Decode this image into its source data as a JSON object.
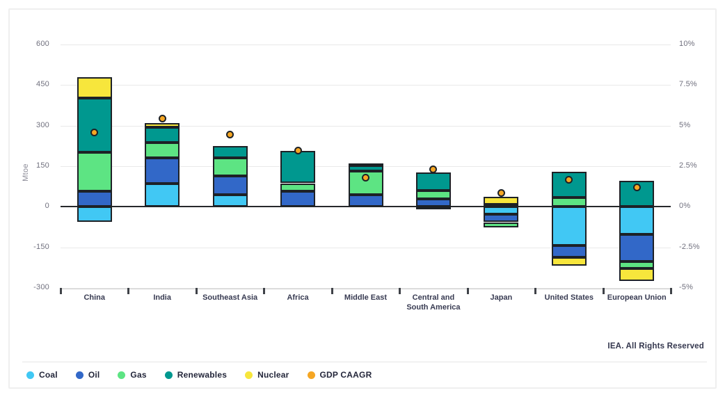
{
  "chart": {
    "footer": {
      "credit": "IEA. All Rights Reserved"
    },
    "colors": {
      "grid": "#e9e9e9",
      "zero_line": "#26282b",
      "bar_outline": "#1d2126",
      "tick_text": "#70707e",
      "category_text": "#383b52"
    }
  },
  "chart_data": {
    "type": "bar",
    "stacked": true,
    "title": "",
    "ylabel": "Mtoe",
    "grid": true,
    "legend_position": "bottom",
    "categories": [
      "China",
      "India",
      "Southeast Asia",
      "Africa",
      "Middle East",
      "Central and South America",
      "Japan",
      "United States",
      "European Union"
    ],
    "y_left": {
      "min": -300,
      "max": 600,
      "step": 150,
      "ticks": [
        "600",
        "450",
        "300",
        "150",
        "0",
        "-150",
        "-300"
      ]
    },
    "y_right": {
      "min": -5,
      "max": 10,
      "ticks": [
        "10%",
        "7.5%",
        "5%",
        "2.5%",
        "0%",
        "-2.5%",
        "-5%"
      ]
    },
    "series": [
      {
        "name": "Coal",
        "color": "#41c8f4",
        "values": [
          -56,
          85,
          44,
          0,
          0,
          -6,
          -28,
          -144,
          -103
        ]
      },
      {
        "name": "Oil",
        "color": "#3268c8",
        "values": [
          57,
          95,
          70,
          57,
          45,
          29,
          -29,
          -43,
          -99
        ]
      },
      {
        "name": "Gas",
        "color": "#5de483",
        "values": [
          144,
          58,
          67,
          30,
          87,
          32,
          -20,
          34,
          -26
        ]
      },
      {
        "name": "Renewables",
        "color": "#00988f",
        "values": [
          200,
          57,
          43,
          119,
          20,
          67,
          8,
          95,
          95
        ]
      },
      {
        "name": "Nuclear",
        "color": "#f7e63c",
        "values": [
          77,
          15,
          0,
          0,
          8,
          0,
          28,
          -32,
          -47
        ]
      }
    ],
    "secondary_series": {
      "name": "GDP CAAGR",
      "color": "#f5a623",
      "unit": "%",
      "values": [
        4.6,
        5.45,
        4.45,
        3.45,
        1.8,
        2.3,
        0.85,
        1.65,
        1.2
      ]
    }
  }
}
